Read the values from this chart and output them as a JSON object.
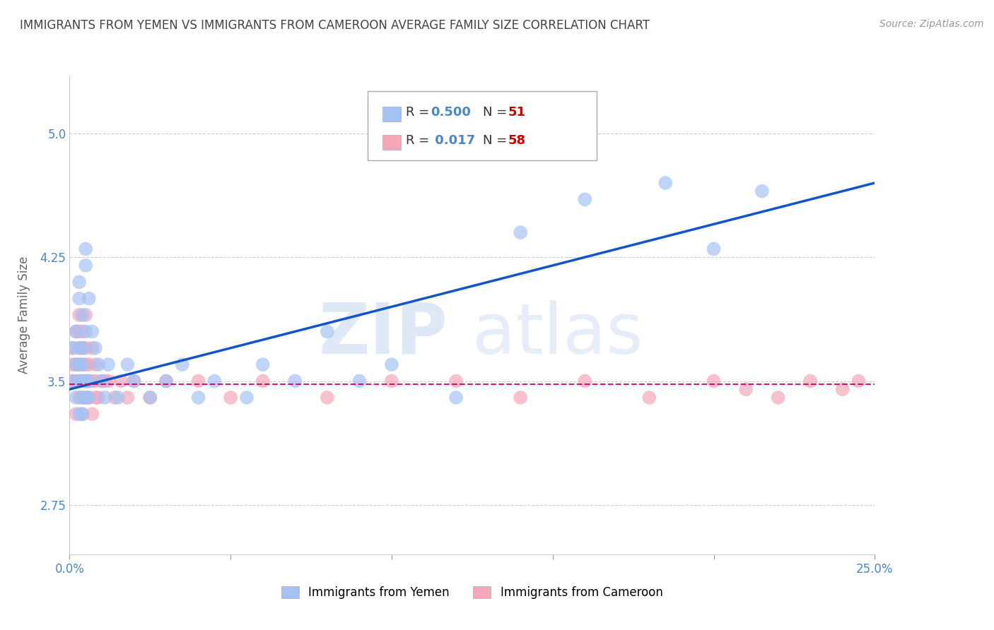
{
  "title": "IMMIGRANTS FROM YEMEN VS IMMIGRANTS FROM CAMEROON AVERAGE FAMILY SIZE CORRELATION CHART",
  "source": "Source: ZipAtlas.com",
  "ylabel": "Average Family Size",
  "xlim": [
    0.0,
    0.25
  ],
  "ylim": [
    2.45,
    5.35
  ],
  "yticks": [
    2.75,
    3.5,
    4.25,
    5.0
  ],
  "xticks": [
    0.0,
    0.05,
    0.1,
    0.15,
    0.2,
    0.25
  ],
  "xticklabels": [
    "0.0%",
    "",
    "",
    "",
    "",
    "25.0%"
  ],
  "legend_labels": [
    "Immigrants from Yemen",
    "Immigrants from Cameroon"
  ],
  "color_yemen": "#a4c2f4",
  "color_cameroon": "#f4a7b9",
  "color_yemen_line": "#1155cc",
  "color_cameroon_line": "#cc0066",
  "title_color": "#434343",
  "source_color": "#999999",
  "axis_color": "#4a86c8",
  "background_color": "#ffffff",
  "grid_color": "#cccccc",
  "yemen_x": [
    0.001,
    0.001,
    0.002,
    0.002,
    0.002,
    0.003,
    0.003,
    0.003,
    0.003,
    0.003,
    0.003,
    0.004,
    0.004,
    0.004,
    0.004,
    0.004,
    0.004,
    0.005,
    0.005,
    0.005,
    0.005,
    0.005,
    0.006,
    0.006,
    0.006,
    0.007,
    0.008,
    0.009,
    0.01,
    0.011,
    0.012,
    0.015,
    0.018,
    0.02,
    0.025,
    0.03,
    0.035,
    0.04,
    0.045,
    0.055,
    0.06,
    0.07,
    0.08,
    0.09,
    0.1,
    0.12,
    0.14,
    0.16,
    0.185,
    0.2,
    0.215
  ],
  "yemen_y": [
    3.5,
    3.7,
    3.4,
    3.6,
    3.8,
    3.3,
    3.5,
    3.6,
    3.7,
    4.0,
    4.1,
    3.3,
    3.4,
    3.5,
    3.6,
    3.7,
    3.9,
    3.4,
    3.5,
    3.8,
    4.3,
    4.2,
    3.4,
    3.5,
    4.0,
    3.8,
    3.7,
    3.6,
    3.5,
    3.4,
    3.6,
    3.4,
    3.6,
    3.5,
    3.4,
    3.5,
    3.6,
    3.4,
    3.5,
    3.4,
    3.6,
    3.5,
    3.8,
    3.5,
    3.6,
    3.4,
    4.4,
    4.6,
    4.7,
    4.3,
    4.65
  ],
  "cameroon_x": [
    0.001,
    0.001,
    0.001,
    0.002,
    0.002,
    0.002,
    0.002,
    0.003,
    0.003,
    0.003,
    0.003,
    0.003,
    0.003,
    0.004,
    0.004,
    0.004,
    0.004,
    0.004,
    0.004,
    0.005,
    0.005,
    0.005,
    0.005,
    0.005,
    0.006,
    0.006,
    0.006,
    0.007,
    0.007,
    0.007,
    0.008,
    0.008,
    0.008,
    0.009,
    0.01,
    0.011,
    0.012,
    0.014,
    0.016,
    0.018,
    0.02,
    0.025,
    0.03,
    0.04,
    0.05,
    0.06,
    0.08,
    0.1,
    0.12,
    0.14,
    0.16,
    0.18,
    0.2,
    0.21,
    0.22,
    0.23,
    0.24,
    0.245
  ],
  "cameroon_y": [
    3.5,
    3.6,
    3.7,
    3.3,
    3.5,
    3.6,
    3.8,
    3.4,
    3.5,
    3.6,
    3.7,
    3.8,
    3.9,
    3.3,
    3.4,
    3.5,
    3.6,
    3.7,
    3.8,
    3.4,
    3.5,
    3.6,
    3.7,
    3.9,
    3.4,
    3.5,
    3.6,
    3.3,
    3.5,
    3.7,
    3.4,
    3.5,
    3.6,
    3.4,
    3.5,
    3.5,
    3.5,
    3.4,
    3.5,
    3.4,
    3.5,
    3.4,
    3.5,
    3.5,
    3.4,
    3.5,
    3.4,
    3.5,
    3.5,
    3.4,
    3.5,
    3.4,
    3.5,
    3.45,
    3.4,
    3.5,
    3.45,
    3.5
  ],
  "watermark_text": "ZIPatlas",
  "watermark_zip": "ZIP",
  "watermark_atlas": "atlas"
}
